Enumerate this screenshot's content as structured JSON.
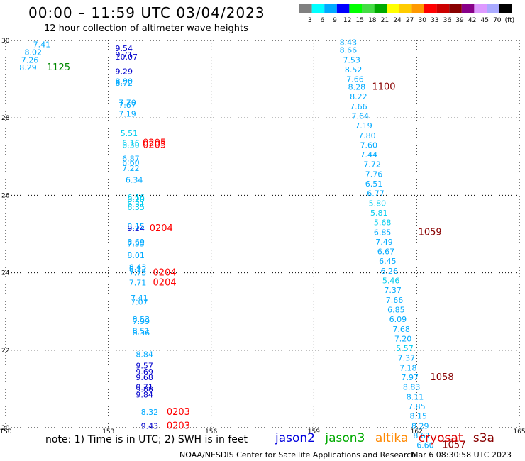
{
  "header": {
    "title": "00:00 – 11:59 UTC 03/04/2023",
    "subtitle": "12 hour collection of altimeter wave heights"
  },
  "colorbar": {
    "colors": [
      "#808080",
      "#00ffff",
      "#00aaff",
      "#0000ff",
      "#00ff00",
      "#44dd44",
      "#00aa00",
      "#ffff00",
      "#ffcc00",
      "#ff9900",
      "#ff0000",
      "#cc0000",
      "#880000",
      "#880088",
      "#dd99ff",
      "#aaaaff",
      "#000000"
    ],
    "labels": [
      "3",
      "6",
      "9",
      "12",
      "15",
      "18",
      "21",
      "24",
      "27",
      "30",
      "33",
      "36",
      "39",
      "42",
      "45",
      "70",
      "(ft)"
    ]
  },
  "chart_data": {
    "type": "scatter",
    "xlim": [
      150,
      165
    ],
    "ylim": [
      20,
      30
    ],
    "x_ticks": [
      "150",
      "153",
      "156",
      "159",
      "162",
      "165"
    ],
    "y_ticks": [
      "20",
      "22",
      "24",
      "26",
      "28",
      "30"
    ],
    "grid": true,
    "labels": [
      {
        "x": 150.8,
        "y": 29.9,
        "text": "7.41",
        "color": "#00aaff"
      },
      {
        "x": 150.55,
        "y": 29.7,
        "text": "8.02",
        "color": "#00aaff"
      },
      {
        "x": 150.45,
        "y": 29.5,
        "text": "7.26",
        "color": "#00aaff"
      },
      {
        "x": 150.4,
        "y": 29.3,
        "text": "8.29",
        "color": "#00aaff"
      },
      {
        "x": 151.2,
        "y": 29.3,
        "text": "1125",
        "color": "#008800",
        "time": true
      },
      {
        "x": 153.2,
        "y": 29.8,
        "text": "9.54",
        "color": "#0000cc"
      },
      {
        "x": 153.2,
        "y": 29.63,
        "text": "9.71",
        "color": "#0000cc"
      },
      {
        "x": 153.2,
        "y": 29.58,
        "text": "10.07",
        "color": "#0000cc"
      },
      {
        "x": 153.2,
        "y": 29.2,
        "text": "9.29",
        "color": "#0000cc"
      },
      {
        "x": 153.2,
        "y": 28.95,
        "text": "8.90",
        "color": "#00aaff"
      },
      {
        "x": 153.2,
        "y": 28.9,
        "text": "8.72",
        "color": "#00aaff"
      },
      {
        "x": 153.3,
        "y": 28.4,
        "text": "7.70",
        "color": "#00aaff"
      },
      {
        "x": 153.3,
        "y": 28.33,
        "text": "7.67",
        "color": "#00aaff"
      },
      {
        "x": 153.3,
        "y": 28.1,
        "text": "7.19",
        "color": "#00aaff"
      },
      {
        "x": 153.35,
        "y": 27.6,
        "text": "5.51",
        "color": "#00ccee"
      },
      {
        "x": 153.4,
        "y": 27.35,
        "text": "6.16",
        "color": "#00ccee"
      },
      {
        "x": 153.4,
        "y": 27.3,
        "text": "6.30",
        "color": "#00ccee"
      },
      {
        "x": 154.0,
        "y": 27.35,
        "text": "0205",
        "color": "#ff0000",
        "time": true
      },
      {
        "x": 154.0,
        "y": 27.3,
        "text": "0205",
        "color": "#ff0000",
        "time": true
      },
      {
        "x": 153.4,
        "y": 26.95,
        "text": "6.87",
        "color": "#00aaff"
      },
      {
        "x": 153.4,
        "y": 26.85,
        "text": "6.60",
        "color": "#00aaff"
      },
      {
        "x": 153.4,
        "y": 26.7,
        "text": "7.22",
        "color": "#00aaff"
      },
      {
        "x": 153.5,
        "y": 26.4,
        "text": "6.34",
        "color": "#00aaff"
      },
      {
        "x": 153.55,
        "y": 25.95,
        "text": "6.16",
        "color": "#00ccee"
      },
      {
        "x": 153.55,
        "y": 25.9,
        "text": "6.20",
        "color": "#00ccee"
      },
      {
        "x": 153.55,
        "y": 25.78,
        "text": "6.31",
        "color": "#00ccee"
      },
      {
        "x": 153.55,
        "y": 25.7,
        "text": "6.35",
        "color": "#00ccee"
      },
      {
        "x": 153.55,
        "y": 25.2,
        "text": "8.15",
        "color": "#00aaff"
      },
      {
        "x": 153.55,
        "y": 25.15,
        "text": "9.24",
        "color": "#0000cc"
      },
      {
        "x": 154.2,
        "y": 25.15,
        "text": "0204",
        "color": "#ff0000",
        "time": true
      },
      {
        "x": 153.55,
        "y": 24.8,
        "text": "8.69",
        "color": "#00aaff"
      },
      {
        "x": 153.55,
        "y": 24.75,
        "text": "7.55",
        "color": "#00aaff"
      },
      {
        "x": 153.55,
        "y": 24.45,
        "text": "8.01",
        "color": "#00aaff"
      },
      {
        "x": 153.6,
        "y": 24.15,
        "text": "8.43",
        "color": "#00aaff"
      },
      {
        "x": 153.6,
        "y": 24.1,
        "text": "8.12",
        "color": "#00aaff"
      },
      {
        "x": 153.6,
        "y": 24.0,
        "text": "7.73",
        "color": "#00aaff"
      },
      {
        "x": 154.3,
        "y": 24.0,
        "text": "0204",
        "color": "#ff0000",
        "time": true
      },
      {
        "x": 153.6,
        "y": 23.75,
        "text": "7.71",
        "color": "#00aaff"
      },
      {
        "x": 154.3,
        "y": 23.75,
        "text": "0204",
        "color": "#ff0000",
        "time": true
      },
      {
        "x": 153.65,
        "y": 23.35,
        "text": "7.41",
        "color": "#00aaff"
      },
      {
        "x": 153.65,
        "y": 23.25,
        "text": "7.07",
        "color": "#00aaff"
      },
      {
        "x": 153.7,
        "y": 22.8,
        "text": "8.53",
        "color": "#00aaff"
      },
      {
        "x": 153.7,
        "y": 22.75,
        "text": "7.99",
        "color": "#00aaff"
      },
      {
        "x": 153.7,
        "y": 22.5,
        "text": "8.51",
        "color": "#00aaff"
      },
      {
        "x": 153.7,
        "y": 22.45,
        "text": "8.36",
        "color": "#00aaff"
      },
      {
        "x": 153.8,
        "y": 21.9,
        "text": "8.84",
        "color": "#00aaff"
      },
      {
        "x": 153.8,
        "y": 21.6,
        "text": "9.57",
        "color": "#0000cc"
      },
      {
        "x": 153.8,
        "y": 21.45,
        "text": "9.69",
        "color": "#0000cc"
      },
      {
        "x": 153.8,
        "y": 21.3,
        "text": "9.68",
        "color": "#0000cc"
      },
      {
        "x": 153.8,
        "y": 21.05,
        "text": "9.71",
        "color": "#0000cc"
      },
      {
        "x": 153.8,
        "y": 21.0,
        "text": "9.88",
        "color": "#0000cc"
      },
      {
        "x": 153.8,
        "y": 20.85,
        "text": "9.84",
        "color": "#0000cc"
      },
      {
        "x": 153.95,
        "y": 20.4,
        "text": "8.32",
        "color": "#00aaff"
      },
      {
        "x": 154.7,
        "y": 20.4,
        "text": "0203",
        "color": "#ff0000",
        "time": true
      },
      {
        "x": 153.95,
        "y": 20.05,
        "text": "9.43",
        "color": "#0000cc"
      },
      {
        "x": 154.7,
        "y": 20.05,
        "text": "0203",
        "color": "#ff0000",
        "time": true
      },
      {
        "x": 159.75,
        "y": 29.95,
        "text": "8.43",
        "color": "#00aaff"
      },
      {
        "x": 159.75,
        "y": 29.75,
        "text": "8.66",
        "color": "#00aaff"
      },
      {
        "x": 159.85,
        "y": 29.5,
        "text": "7.53",
        "color": "#00aaff"
      },
      {
        "x": 159.9,
        "y": 29.25,
        "text": "8.52",
        "color": "#00aaff"
      },
      {
        "x": 159.95,
        "y": 29.0,
        "text": "7.66",
        "color": "#00aaff"
      },
      {
        "x": 160.0,
        "y": 28.8,
        "text": "8.28",
        "color": "#00aaff"
      },
      {
        "x": 160.7,
        "y": 28.8,
        "text": "1100",
        "color": "#880000",
        "time": true
      },
      {
        "x": 160.05,
        "y": 28.55,
        "text": "8.22",
        "color": "#00aaff"
      },
      {
        "x": 160.05,
        "y": 28.3,
        "text": "7.66",
        "color": "#00aaff"
      },
      {
        "x": 160.1,
        "y": 28.05,
        "text": "7.64",
        "color": "#00aaff"
      },
      {
        "x": 160.2,
        "y": 27.8,
        "text": "7.19",
        "color": "#00aaff"
      },
      {
        "x": 160.3,
        "y": 27.55,
        "text": "7.80",
        "color": "#00aaff"
      },
      {
        "x": 160.35,
        "y": 27.3,
        "text": "7.60",
        "color": "#00aaff"
      },
      {
        "x": 160.35,
        "y": 27.05,
        "text": "7.44",
        "color": "#00aaff"
      },
      {
        "x": 160.45,
        "y": 26.8,
        "text": "7.72",
        "color": "#00aaff"
      },
      {
        "x": 160.5,
        "y": 26.55,
        "text": "7.76",
        "color": "#00aaff"
      },
      {
        "x": 160.5,
        "y": 26.3,
        "text": "6.51",
        "color": "#00aaff"
      },
      {
        "x": 160.55,
        "y": 26.05,
        "text": "6.77",
        "color": "#00aaff"
      },
      {
        "x": 160.6,
        "y": 25.8,
        "text": "5.80",
        "color": "#00ccee"
      },
      {
        "x": 160.65,
        "y": 25.55,
        "text": "5.81",
        "color": "#00ccee"
      },
      {
        "x": 160.75,
        "y": 25.3,
        "text": "5.68",
        "color": "#00ccee"
      },
      {
        "x": 160.75,
        "y": 25.05,
        "text": "6.85",
        "color": "#00aaff"
      },
      {
        "x": 162.05,
        "y": 25.05,
        "text": "1059",
        "color": "#880000",
        "time": true
      },
      {
        "x": 160.8,
        "y": 24.8,
        "text": "7.49",
        "color": "#00aaff"
      },
      {
        "x": 160.85,
        "y": 24.55,
        "text": "6.67",
        "color": "#00aaff"
      },
      {
        "x": 160.9,
        "y": 24.3,
        "text": "6.45",
        "color": "#00aaff"
      },
      {
        "x": 160.95,
        "y": 24.05,
        "text": "6.26",
        "color": "#00aaff"
      },
      {
        "x": 161.0,
        "y": 23.8,
        "text": "5.46",
        "color": "#00ccee"
      },
      {
        "x": 161.05,
        "y": 23.55,
        "text": "7.37",
        "color": "#00aaff"
      },
      {
        "x": 161.1,
        "y": 23.3,
        "text": "7.66",
        "color": "#00aaff"
      },
      {
        "x": 161.15,
        "y": 23.05,
        "text": "6.85",
        "color": "#00aaff"
      },
      {
        "x": 161.2,
        "y": 22.8,
        "text": "6.09",
        "color": "#00aaff"
      },
      {
        "x": 161.3,
        "y": 22.55,
        "text": "7.68",
        "color": "#00aaff"
      },
      {
        "x": 161.35,
        "y": 22.3,
        "text": "7.20",
        "color": "#00aaff"
      },
      {
        "x": 161.4,
        "y": 22.05,
        "text": "5.57",
        "color": "#00ccee"
      },
      {
        "x": 161.45,
        "y": 21.8,
        "text": "7.37",
        "color": "#00aaff"
      },
      {
        "x": 161.5,
        "y": 21.55,
        "text": "7.18",
        "color": "#00aaff"
      },
      {
        "x": 161.55,
        "y": 21.3,
        "text": "7.97",
        "color": "#00aaff"
      },
      {
        "x": 162.4,
        "y": 21.3,
        "text": "1058",
        "color": "#880000",
        "time": true
      },
      {
        "x": 161.6,
        "y": 21.05,
        "text": "8.83",
        "color": "#00aaff"
      },
      {
        "x": 161.7,
        "y": 20.8,
        "text": "8.11",
        "color": "#00aaff"
      },
      {
        "x": 161.75,
        "y": 20.55,
        "text": "7.85",
        "color": "#00aaff"
      },
      {
        "x": 161.8,
        "y": 20.3,
        "text": "8.15",
        "color": "#00aaff"
      },
      {
        "x": 161.85,
        "y": 20.05,
        "text": "8.29",
        "color": "#00aaff"
      },
      {
        "x": 161.9,
        "y": 19.8,
        "text": "8.61",
        "color": "#00aaff"
      },
      {
        "x": 162.0,
        "y": 19.55,
        "text": "6.60",
        "color": "#00aaff"
      },
      {
        "x": 162.75,
        "y": 19.55,
        "text": "1057",
        "color": "#880000",
        "time": true
      }
    ]
  },
  "footer": {
    "note": "note:  1) Time is in UTC;  2) SWH is in feet",
    "legend": [
      {
        "label": "jason2",
        "color": "#0000dd"
      },
      {
        "label": "jason3",
        "color": "#00aa00"
      },
      {
        "label": "altika",
        "color": "#ff8800"
      },
      {
        "label": "cryosat",
        "color": "#dd0000"
      },
      {
        "label": "s3a",
        "color": "#880000"
      }
    ],
    "credit": "NOAA/NESDIS Center for Satellite Applications and Research",
    "timestamp": "Mar  6 08:30:58 UTC 2023"
  }
}
